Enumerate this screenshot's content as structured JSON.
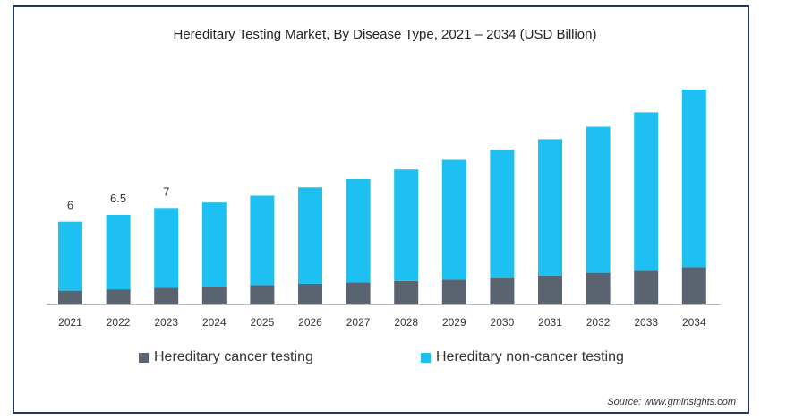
{
  "chart_data": {
    "type": "bar",
    "stacked": true,
    "title": "Hereditary Testing Market, By Disease Type, 2021 – 2034 (USD Billion)",
    "categories": [
      "2021",
      "2022",
      "2023",
      "2024",
      "2025",
      "2026",
      "2027",
      "2028",
      "2029",
      "2030",
      "2031",
      "2032",
      "2033",
      "2034"
    ],
    "series": [
      {
        "name": "Hereditary cancer testing",
        "color": "#5a6470",
        "values": [
          1.0,
          1.1,
          1.2,
          1.3,
          1.4,
          1.5,
          1.6,
          1.7,
          1.8,
          1.95,
          2.1,
          2.3,
          2.45,
          2.7
        ]
      },
      {
        "name": "Hereditary non-cancer testing",
        "color": "#1ec0f2",
        "values": [
          5.0,
          5.4,
          5.8,
          6.1,
          6.5,
          7.0,
          7.5,
          8.1,
          8.7,
          9.3,
          9.9,
          10.6,
          11.5,
          12.9
        ]
      }
    ],
    "data_labels": [
      "6",
      "6.5",
      "7",
      "",
      "",
      "",
      "",
      "",
      "",
      "",
      "",
      "",
      "",
      ""
    ],
    "ylim": [
      0,
      15.6
    ],
    "grid": false,
    "legend": "bottom"
  },
  "source": "Source: www.gminsights.com"
}
